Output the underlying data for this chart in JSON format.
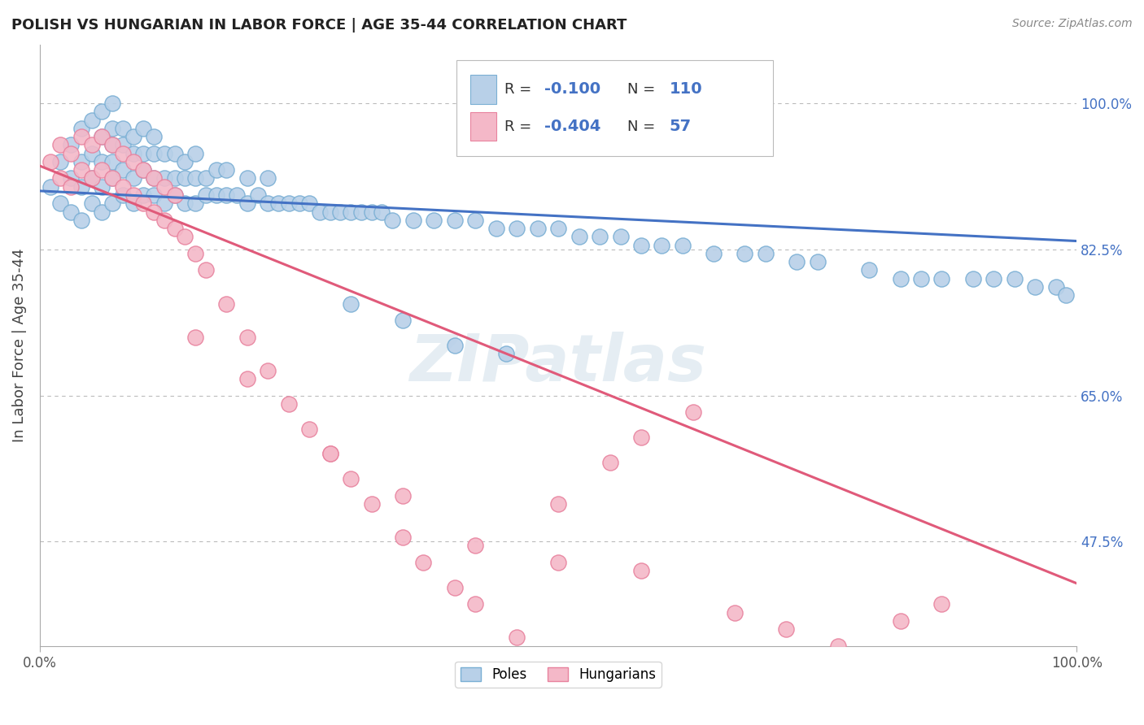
{
  "title": "POLISH VS HUNGARIAN IN LABOR FORCE | AGE 35-44 CORRELATION CHART",
  "source": "Source: ZipAtlas.com",
  "ylabel": "In Labor Force | Age 35-44",
  "xlim": [
    0.0,
    1.0
  ],
  "ylim": [
    0.35,
    1.07
  ],
  "yticks": [
    0.475,
    0.65,
    0.825,
    1.0
  ],
  "ytick_labels": [
    "47.5%",
    "65.0%",
    "82.5%",
    "100.0%"
  ],
  "R_poles": -0.1,
  "N_poles": 110,
  "R_hungarians": -0.404,
  "N_hungarians": 57,
  "poles_color": "#b8d0e8",
  "poles_edge_color": "#7aafd4",
  "hungarians_color": "#f4b8c8",
  "hungarians_edge_color": "#e8829e",
  "trend_poles_color": "#4472c4",
  "trend_hungarians_color": "#e05a7a",
  "background_color": "#ffffff",
  "watermark": "ZIPatlas",
  "legend_entries": [
    "Poles",
    "Hungarians"
  ],
  "poles_x": [
    0.01,
    0.02,
    0.02,
    0.03,
    0.03,
    0.03,
    0.04,
    0.04,
    0.04,
    0.04,
    0.05,
    0.05,
    0.05,
    0.05,
    0.06,
    0.06,
    0.06,
    0.06,
    0.06,
    0.07,
    0.07,
    0.07,
    0.07,
    0.07,
    0.07,
    0.08,
    0.08,
    0.08,
    0.08,
    0.09,
    0.09,
    0.09,
    0.09,
    0.1,
    0.1,
    0.1,
    0.1,
    0.11,
    0.11,
    0.11,
    0.11,
    0.12,
    0.12,
    0.12,
    0.13,
    0.13,
    0.13,
    0.14,
    0.14,
    0.14,
    0.15,
    0.15,
    0.15,
    0.16,
    0.16,
    0.17,
    0.17,
    0.18,
    0.18,
    0.19,
    0.2,
    0.2,
    0.21,
    0.22,
    0.22,
    0.23,
    0.24,
    0.25,
    0.26,
    0.27,
    0.28,
    0.29,
    0.3,
    0.31,
    0.32,
    0.33,
    0.34,
    0.36,
    0.38,
    0.4,
    0.42,
    0.44,
    0.46,
    0.48,
    0.5,
    0.52,
    0.54,
    0.56,
    0.58,
    0.6,
    0.62,
    0.65,
    0.68,
    0.7,
    0.73,
    0.75,
    0.8,
    0.83,
    0.85,
    0.87,
    0.9,
    0.92,
    0.94,
    0.96,
    0.98,
    0.99,
    0.3,
    0.35,
    0.4,
    0.45
  ],
  "poles_y": [
    0.9,
    0.88,
    0.93,
    0.87,
    0.91,
    0.95,
    0.86,
    0.9,
    0.93,
    0.97,
    0.88,
    0.91,
    0.94,
    0.98,
    0.87,
    0.9,
    0.93,
    0.96,
    0.99,
    0.88,
    0.91,
    0.93,
    0.95,
    0.97,
    1.0,
    0.89,
    0.92,
    0.95,
    0.97,
    0.88,
    0.91,
    0.94,
    0.96,
    0.89,
    0.92,
    0.94,
    0.97,
    0.89,
    0.91,
    0.94,
    0.96,
    0.88,
    0.91,
    0.94,
    0.89,
    0.91,
    0.94,
    0.88,
    0.91,
    0.93,
    0.88,
    0.91,
    0.94,
    0.89,
    0.91,
    0.89,
    0.92,
    0.89,
    0.92,
    0.89,
    0.88,
    0.91,
    0.89,
    0.88,
    0.91,
    0.88,
    0.88,
    0.88,
    0.88,
    0.87,
    0.87,
    0.87,
    0.87,
    0.87,
    0.87,
    0.87,
    0.86,
    0.86,
    0.86,
    0.86,
    0.86,
    0.85,
    0.85,
    0.85,
    0.85,
    0.84,
    0.84,
    0.84,
    0.83,
    0.83,
    0.83,
    0.82,
    0.82,
    0.82,
    0.81,
    0.81,
    0.8,
    0.79,
    0.79,
    0.79,
    0.79,
    0.79,
    0.79,
    0.78,
    0.78,
    0.77,
    0.76,
    0.74,
    0.71,
    0.7
  ],
  "hungarians_x": [
    0.01,
    0.02,
    0.02,
    0.03,
    0.03,
    0.04,
    0.04,
    0.05,
    0.05,
    0.06,
    0.06,
    0.07,
    0.07,
    0.08,
    0.08,
    0.09,
    0.09,
    0.1,
    0.1,
    0.11,
    0.11,
    0.12,
    0.12,
    0.13,
    0.13,
    0.14,
    0.15,
    0.16,
    0.18,
    0.2,
    0.22,
    0.24,
    0.26,
    0.28,
    0.3,
    0.32,
    0.35,
    0.37,
    0.4,
    0.42,
    0.46,
    0.5,
    0.55,
    0.58,
    0.63,
    0.67,
    0.72,
    0.77,
    0.83,
    0.87,
    0.15,
    0.2,
    0.28,
    0.35,
    0.42,
    0.5,
    0.58
  ],
  "hungarians_y": [
    0.93,
    0.91,
    0.95,
    0.9,
    0.94,
    0.92,
    0.96,
    0.91,
    0.95,
    0.92,
    0.96,
    0.91,
    0.95,
    0.9,
    0.94,
    0.89,
    0.93,
    0.88,
    0.92,
    0.87,
    0.91,
    0.86,
    0.9,
    0.85,
    0.89,
    0.84,
    0.82,
    0.8,
    0.76,
    0.72,
    0.68,
    0.64,
    0.61,
    0.58,
    0.55,
    0.52,
    0.48,
    0.45,
    0.42,
    0.4,
    0.36,
    0.52,
    0.57,
    0.6,
    0.63,
    0.39,
    0.37,
    0.35,
    0.38,
    0.4,
    0.72,
    0.67,
    0.58,
    0.53,
    0.47,
    0.45,
    0.44
  ]
}
